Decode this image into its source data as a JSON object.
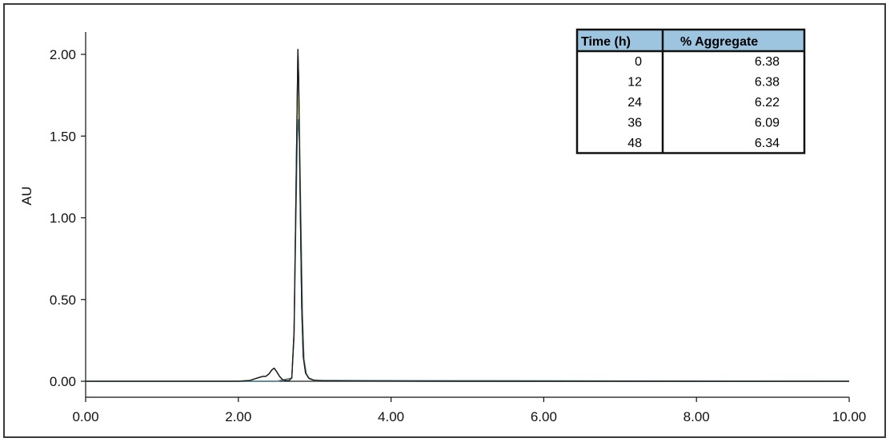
{
  "chart_data": {
    "type": "line",
    "title": "",
    "xlabel": "",
    "ylabel": "AU",
    "xlim": [
      0,
      10
    ],
    "ylim": [
      0,
      2
    ],
    "x_ticks": [
      0,
      2,
      4,
      6,
      8,
      10
    ],
    "x_tick_labels": [
      "0.00",
      "2.00",
      "4.00",
      "6.00",
      "8.00",
      "10.00"
    ],
    "y_ticks": [
      0,
      0.5,
      1,
      1.5,
      2
    ],
    "y_tick_labels": [
      "0.00",
      "0.50",
      "1.00",
      "1.50",
      "2.00"
    ],
    "grid": false,
    "series": [
      {
        "color": "#1c1c1c",
        "x": [
          0,
          2.0,
          2.15,
          2.25,
          2.32,
          2.36,
          2.4,
          2.44,
          2.47,
          2.5,
          2.54,
          2.58,
          2.62,
          2.66,
          2.7,
          2.73,
          2.75,
          2.77,
          2.78,
          2.79,
          2.81,
          2.83,
          2.85,
          2.88,
          2.92,
          2.98,
          3.1,
          3.5,
          5.0,
          10.0
        ],
        "y": [
          0,
          0,
          0.005,
          0.02,
          0.03,
          0.03,
          0.045,
          0.07,
          0.08,
          0.06,
          0.03,
          0.01,
          0.005,
          0.004,
          0.02,
          0.3,
          1.0,
          1.7,
          2.03,
          1.85,
          1.1,
          0.45,
          0.15,
          0.05,
          0.02,
          0.008,
          0.003,
          0.001,
          0,
          0
        ]
      },
      {
        "color": "#b7d36a",
        "x": [
          0,
          2.5,
          2.7,
          2.73,
          2.75,
          2.77,
          2.785,
          2.8,
          2.82,
          2.84,
          2.86,
          2.89,
          2.93,
          3.0,
          10.0
        ],
        "y": [
          0,
          0,
          0.02,
          0.28,
          0.95,
          1.55,
          1.72,
          1.6,
          1.0,
          0.42,
          0.14,
          0.05,
          0.015,
          0.005,
          0
        ]
      },
      {
        "color": "#4a7690",
        "x": [
          0,
          2.5,
          2.7,
          2.73,
          2.75,
          2.77,
          2.785,
          2.8,
          2.82,
          2.84,
          2.86,
          2.89,
          2.93,
          3.0,
          10.0
        ],
        "y": [
          0,
          0,
          0.02,
          0.27,
          0.9,
          1.45,
          1.6,
          1.5,
          0.95,
          0.4,
          0.13,
          0.045,
          0.015,
          0.005,
          0
        ]
      }
    ],
    "table": {
      "header_fill": "#9ec5e0",
      "columns": [
        "Time (h)",
        "% Aggregate"
      ],
      "rows": [
        [
          "0",
          "6.38"
        ],
        [
          "12",
          "6.38"
        ],
        [
          "24",
          "6.22"
        ],
        [
          "36",
          "6.09"
        ],
        [
          "48",
          "6.34"
        ]
      ]
    }
  }
}
